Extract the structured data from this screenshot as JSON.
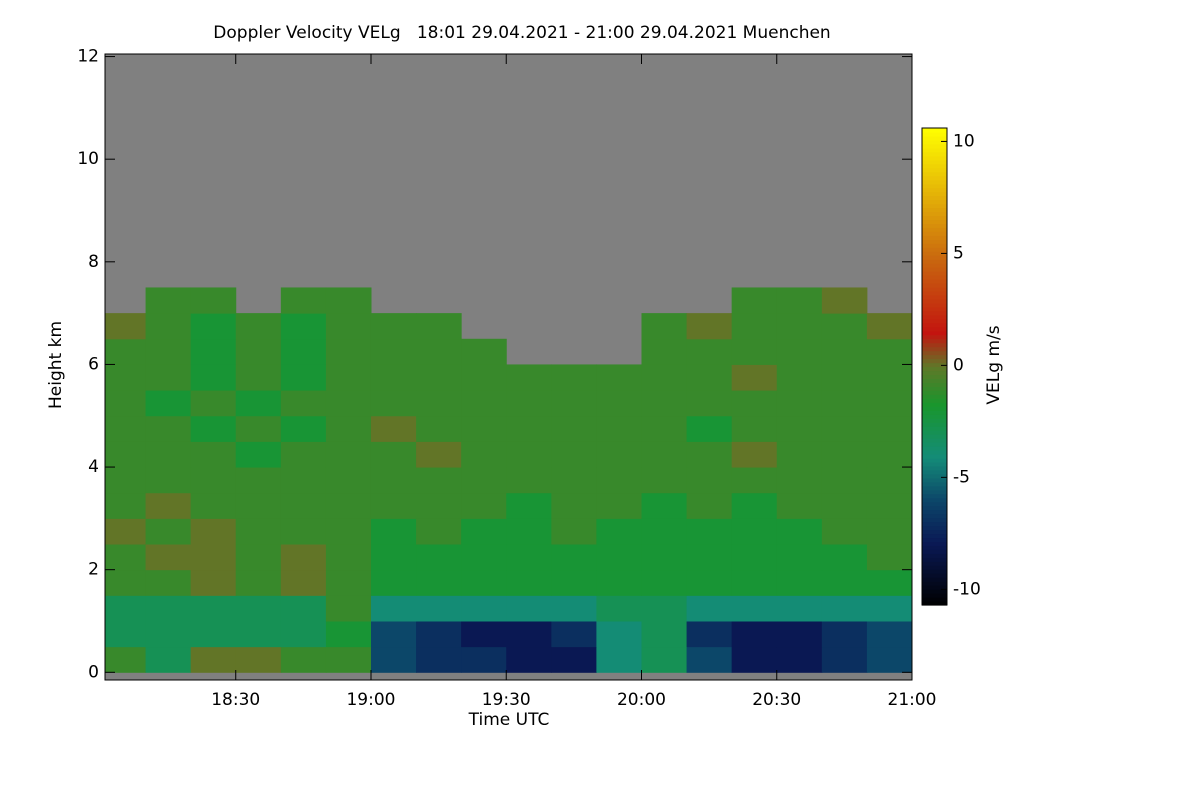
{
  "chart_data": {
    "type": "heatmap",
    "title": "Doppler Velocity VELg   18:01 29.04.2021 - 21:00 29.04.2021 Muenchen",
    "x_label": "Time UTC",
    "y_label": "Height km",
    "colorbar_label": "VELg m/s",
    "xlim": [
      18.0167,
      21.0
    ],
    "xticks": [
      {
        "value": 18.5,
        "label": "18:30"
      },
      {
        "value": 19.0,
        "label": "19:00"
      },
      {
        "value": 19.5,
        "label": "19:30"
      },
      {
        "value": 20.0,
        "label": "20:00"
      },
      {
        "value": 20.5,
        "label": "20:30"
      },
      {
        "value": 21.0,
        "label": "21:00"
      }
    ],
    "ylim": [
      -0.15,
      12.05
    ],
    "yticks": [
      0,
      2,
      4,
      6,
      8,
      10,
      12
    ],
    "zlim": [
      -10.7,
      10.6
    ],
    "zticks": [
      -10,
      -5,
      0,
      5,
      10
    ],
    "xbins": [
      18.0167,
      18.1667,
      18.3333,
      18.5,
      18.6667,
      18.8333,
      19.0,
      19.1667,
      19.3333,
      19.5,
      19.6667,
      19.8333,
      20.0,
      20.1667,
      20.3333,
      20.5,
      20.6667,
      20.8333,
      21.0
    ],
    "ybins": [
      0,
      0.5,
      1,
      1.5,
      2,
      2.5,
      3,
      3.5,
      4,
      4.5,
      5,
      5.5,
      6,
      6.5,
      7,
      7.5,
      8,
      8.5,
      9,
      9.5,
      10,
      10.5,
      11,
      11.5,
      12
    ],
    "z": [
      [
        -1,
        -3,
        0,
        0,
        -1,
        -1,
        -6,
        -7,
        -7,
        -8,
        -8,
        -4,
        -3,
        -6,
        -8,
        -8,
        -7,
        -6
      ],
      [
        -3,
        -3,
        -3,
        -3,
        -3,
        -2,
        -6,
        -7,
        -8,
        -8,
        -7,
        -4,
        -3,
        -7,
        -8,
        -8,
        -7,
        -6
      ],
      [
        -3,
        -3,
        -3,
        -3,
        -3,
        -1,
        -4,
        -4,
        -4,
        -4,
        -4,
        -3,
        -3,
        -4,
        -4,
        -4,
        -4,
        -4
      ],
      [
        -1,
        -1,
        0,
        -1,
        0,
        -1,
        -2,
        -2,
        -2,
        -2,
        -2,
        -2,
        -2,
        -2,
        -2,
        -2,
        -2,
        -2
      ],
      [
        -1,
        0,
        0,
        -1,
        0,
        -1,
        -2,
        -2,
        -2,
        -2,
        -2,
        -2,
        -2,
        -2,
        -2,
        -2,
        -2,
        -1
      ],
      [
        0,
        -1,
        0,
        -1,
        -1,
        -1,
        -2,
        -1,
        -2,
        -2,
        -1,
        -2,
        -2,
        -2,
        -2,
        -2,
        -1,
        -1
      ],
      [
        -1,
        0,
        -1,
        -1,
        -1,
        -1,
        -1,
        -1,
        -1,
        -2,
        -1,
        -1,
        -2,
        -1,
        -2,
        -1,
        -1,
        -1
      ],
      [
        -1,
        -1,
        -1,
        -1,
        -1,
        -1,
        -1,
        -1,
        -1,
        -1,
        -1,
        -1,
        -1,
        -1,
        -1,
        -1,
        -1,
        -1
      ],
      [
        -1,
        -1,
        -1,
        -2,
        -1,
        -1,
        -1,
        0,
        -1,
        -1,
        -1,
        -1,
        -1,
        -1,
        0,
        -1,
        -1,
        -1
      ],
      [
        -1,
        -1,
        -2,
        -1,
        -2,
        -1,
        0,
        -1,
        -1,
        -1,
        -1,
        -1,
        -1,
        -2,
        -1,
        -1,
        -1,
        -1
      ],
      [
        -1,
        -2,
        -1,
        -2,
        -1,
        -1,
        -1,
        -1,
        -1,
        -1,
        -1,
        -1,
        -1,
        -1,
        -1,
        -1,
        -1,
        -1
      ],
      [
        -1,
        -1,
        -2,
        -1,
        -2,
        -1,
        -1,
        -1,
        -1,
        -1,
        -1,
        -1,
        -1,
        -1,
        0,
        -1,
        -1,
        -1
      ],
      [
        -1,
        -1,
        -2,
        -1,
        -2,
        -1,
        -1,
        -1,
        -1,
        null,
        null,
        null,
        -1,
        -1,
        -1,
        -1,
        -1,
        -1
      ],
      [
        0,
        -1,
        -2,
        -1,
        -2,
        -1,
        -1,
        -1,
        null,
        null,
        null,
        null,
        -1,
        0,
        -1,
        -1,
        -1,
        0
      ],
      [
        null,
        -1,
        -1,
        null,
        -1,
        -1,
        null,
        null,
        null,
        null,
        null,
        null,
        null,
        null,
        -1,
        -1,
        0,
        null
      ],
      [
        null,
        null,
        null,
        null,
        null,
        null,
        null,
        null,
        null,
        null,
        null,
        null,
        null,
        null,
        null,
        null,
        null,
        null
      ],
      [
        null,
        null,
        null,
        null,
        null,
        null,
        null,
        null,
        null,
        null,
        null,
        null,
        null,
        null,
        null,
        null,
        null,
        null
      ],
      [
        null,
        null,
        null,
        null,
        null,
        null,
        null,
        null,
        null,
        null,
        null,
        null,
        null,
        null,
        null,
        null,
        null,
        null
      ],
      [
        null,
        null,
        null,
        null,
        null,
        null,
        null,
        null,
        null,
        null,
        null,
        null,
        null,
        null,
        null,
        null,
        null,
        null
      ],
      [
        null,
        null,
        null,
        null,
        null,
        null,
        null,
        null,
        null,
        null,
        null,
        null,
        null,
        null,
        null,
        null,
        null,
        null
      ],
      [
        null,
        null,
        null,
        null,
        null,
        null,
        null,
        null,
        null,
        null,
        null,
        null,
        null,
        null,
        null,
        null,
        null,
        null
      ],
      [
        null,
        null,
        null,
        null,
        null,
        null,
        null,
        null,
        null,
        null,
        null,
        null,
        null,
        null,
        null,
        null,
        null,
        null
      ],
      [
        null,
        null,
        null,
        null,
        null,
        null,
        null,
        null,
        null,
        null,
        null,
        null,
        null,
        null,
        null,
        null,
        null,
        null
      ],
      [
        null,
        null,
        null,
        null,
        null,
        null,
        null,
        null,
        null,
        null,
        null,
        null,
        null,
        null,
        null,
        null,
        null,
        null
      ]
    ]
  }
}
